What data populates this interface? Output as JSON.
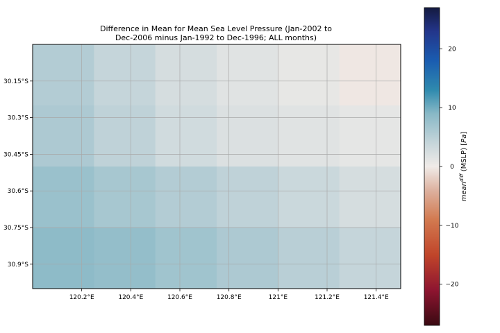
{
  "chart_data": {
    "type": "heatmap",
    "title_line1": "Difference in Mean for Mean Sea Level Pressure (Jan-2002 to",
    "title_line2": "Dec-2006 minus Jan-1992 to Dec-1996; ALL months)",
    "x_ticks": [
      {
        "value": 120.2,
        "label": "120.2°E"
      },
      {
        "value": 120.4,
        "label": "120.4°E"
      },
      {
        "value": 120.6,
        "label": "120.6°E"
      },
      {
        "value": 120.8,
        "label": "120.8°E"
      },
      {
        "value": 121.0,
        "label": "121°E"
      },
      {
        "value": 121.2,
        "label": "121.2°E"
      },
      {
        "value": 121.4,
        "label": "121.4°E"
      }
    ],
    "y_ticks": [
      {
        "value": -30.15,
        "label": "30.15°S"
      },
      {
        "value": -30.3,
        "label": "30.3°S"
      },
      {
        "value": -30.45,
        "label": "30.45°S"
      },
      {
        "value": -30.6,
        "label": "30.6°S"
      },
      {
        "value": -30.75,
        "label": "30.75°S"
      },
      {
        "value": -30.9,
        "label": "30.9°S"
      }
    ],
    "xlim": [
      120.0,
      121.5
    ],
    "ylim": [
      -31.0,
      -30.0
    ],
    "x_edges": [
      120.0,
      120.25,
      120.5,
      120.75,
      121.0,
      121.25,
      121.5
    ],
    "y_edges": [
      -30.0,
      -30.25,
      -30.5,
      -30.75,
      -31.0
    ],
    "values": [
      [
        5.5,
        4.0,
        2.5,
        1.5,
        0.8,
        -0.3
      ],
      [
        6.0,
        4.5,
        3.0,
        2.0,
        1.5,
        1.0
      ],
      [
        7.5,
        6.5,
        5.5,
        4.5,
        3.5,
        2.5
      ],
      [
        8.5,
        8.0,
        7.0,
        6.0,
        5.0,
        4.0
      ]
    ],
    "grid": true,
    "colorbar": {
      "label": "mean^{diff} (MSLP) [Pa]",
      "range": [
        -27,
        27
      ],
      "ticks": [
        {
          "value": 20,
          "label": "20"
        },
        {
          "value": 10,
          "label": "10"
        },
        {
          "value": 0,
          "label": "0"
        },
        {
          "value": -10,
          "label": "−10"
        },
        {
          "value": -20,
          "label": "−20"
        }
      ],
      "colormap": [
        {
          "value": -27,
          "color": "#3a0a12"
        },
        {
          "value": -21,
          "color": "#8e1530"
        },
        {
          "value": -15,
          "color": "#c0452a"
        },
        {
          "value": -9,
          "color": "#d27a50"
        },
        {
          "value": -4,
          "color": "#ddb2a0"
        },
        {
          "value": 0,
          "color": "#f0ebe8"
        },
        {
          "value": 4,
          "color": "#c5d5da"
        },
        {
          "value": 9,
          "color": "#88b8c6"
        },
        {
          "value": 13,
          "color": "#2f8aae"
        },
        {
          "value": 18,
          "color": "#1a5cb0"
        },
        {
          "value": 23,
          "color": "#23358a"
        },
        {
          "value": 27,
          "color": "#141a40"
        }
      ]
    }
  }
}
